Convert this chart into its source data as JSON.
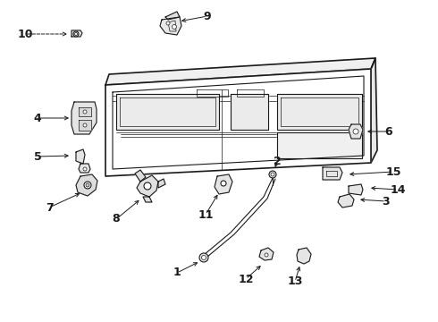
{
  "bg_color": "#ffffff",
  "lc": "#1a1a1a",
  "fig_width": 4.9,
  "fig_height": 3.6,
  "dpi": 100,
  "label_fs": 9,
  "label_bold": true
}
